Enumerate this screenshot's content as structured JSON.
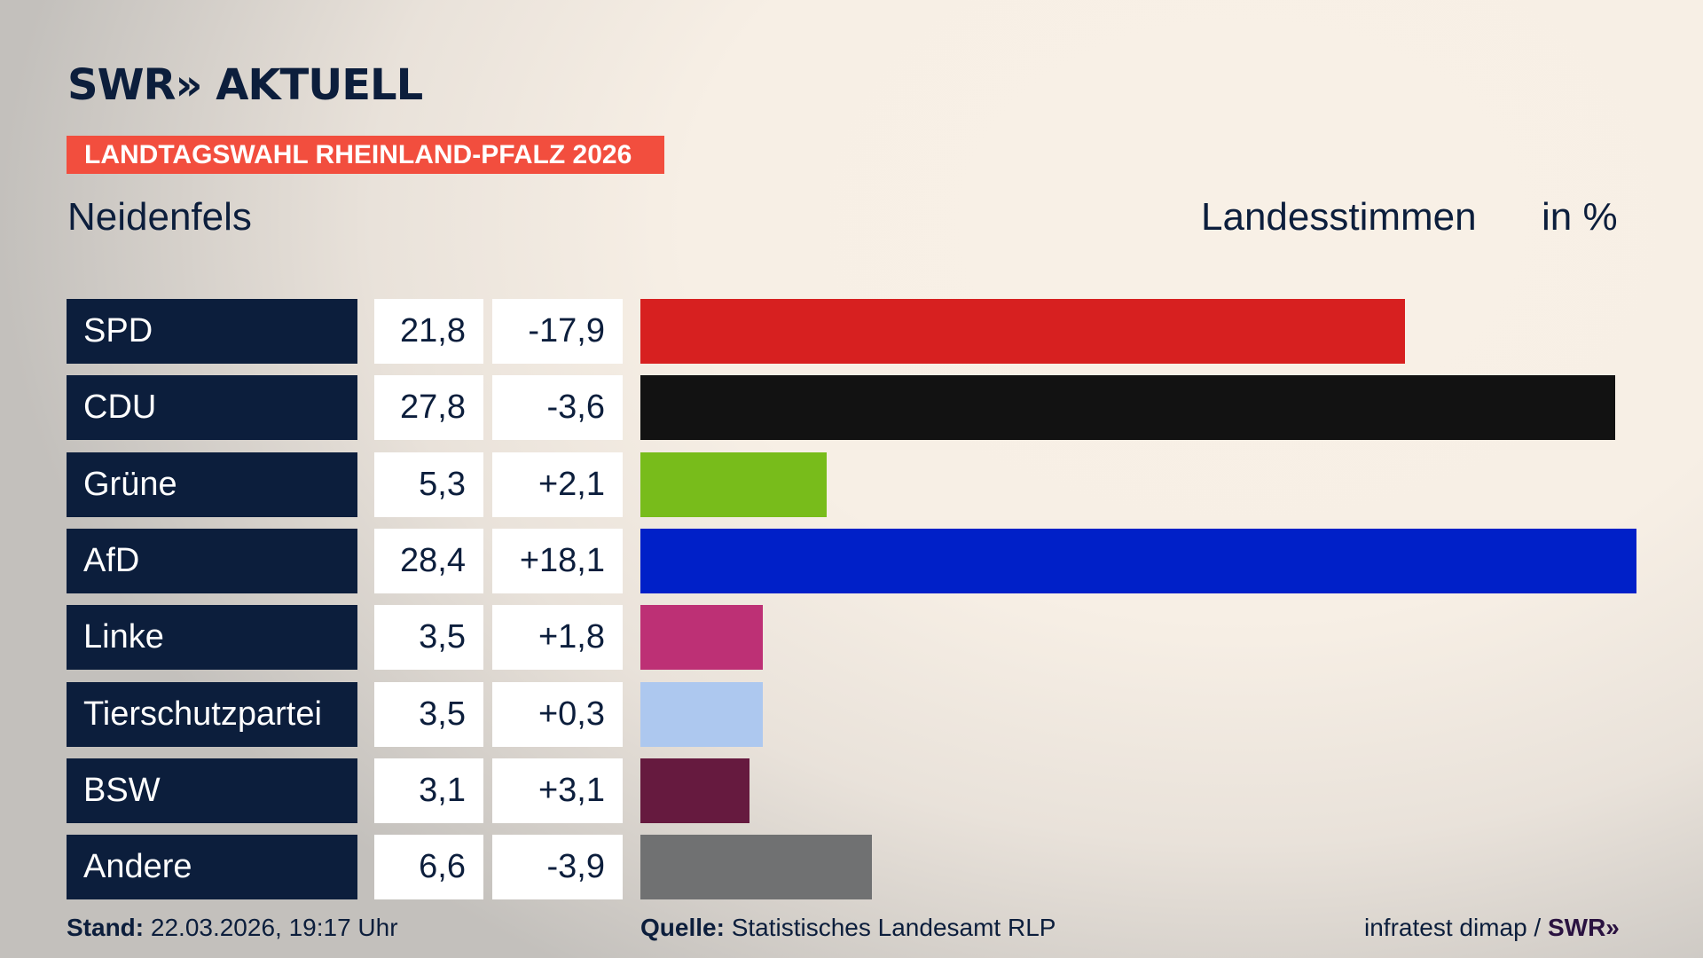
{
  "header": {
    "logo": "SWR» AKTUELL",
    "banner": "LANDTAGSWAHL RHEINLAND-PFALZ 2026",
    "region": "Neidenfels",
    "metric": "Landesstimmen",
    "unit": "in %"
  },
  "colors": {
    "brand": "#0c1e3c",
    "banner": "#f24e3e"
  },
  "chart_data": {
    "type": "bar",
    "orientation": "horizontal",
    "categories": [
      "SPD",
      "CDU",
      "Grüne",
      "AfD",
      "Linke",
      "Tierschutzpartei",
      "BSW",
      "Andere"
    ],
    "values": [
      "21,8",
      "27,8",
      "5,3",
      "28,4",
      "3,5",
      "3,5",
      "3,1",
      "6,6"
    ],
    "changes": [
      "-17,9",
      "-3,6",
      "+2,1",
      "+18,1",
      "+1,8",
      "+0,3",
      "+3,1",
      "-3,9"
    ],
    "numeric_values": [
      21.8,
      27.8,
      5.3,
      28.4,
      3.5,
      3.5,
      3.1,
      6.6
    ],
    "colors": [
      "#d72020",
      "#121212",
      "#78bc1b",
      "#0020c8",
      "#bd3075",
      "#adc8ef",
      "#661a3f",
      "#707172"
    ]
  },
  "footer": {
    "stand_label": "Stand:",
    "stand_value": "22.03.2026, 19:17 Uhr",
    "source_label": "Quelle:",
    "source_value": "Statistisches Landesamt RLP",
    "credit": "infratest dimap /",
    "credit_logo": "SWR»"
  }
}
